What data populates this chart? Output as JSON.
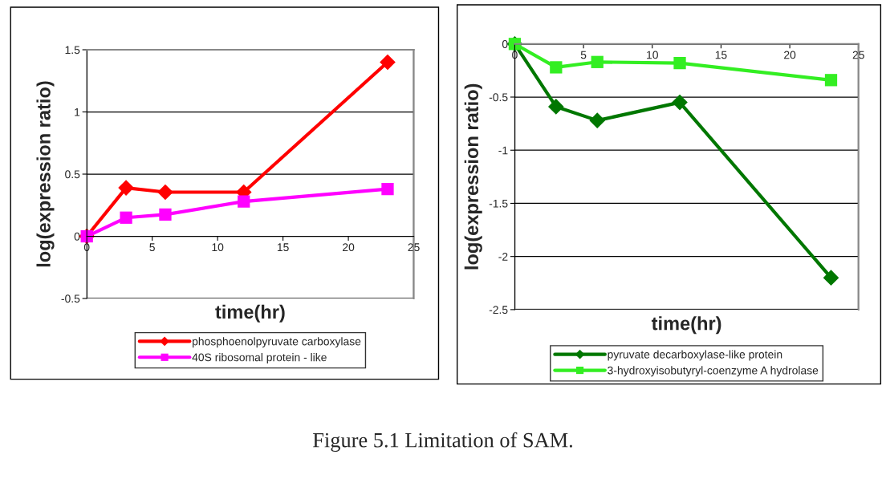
{
  "chart_data": [
    {
      "type": "line",
      "xlabel": "time(hr)",
      "ylabel": "log(expression ratio)",
      "x": [
        0,
        3,
        6,
        12,
        23
      ],
      "xlim": [
        0,
        25
      ],
      "xticks": [
        0,
        5,
        10,
        15,
        20,
        25
      ],
      "ylim": [
        -0.5,
        1.5
      ],
      "yticks": [
        -0.5,
        0,
        0.5,
        1,
        1.5
      ],
      "grid": "y",
      "legend": "bottom",
      "series": [
        {
          "name": "phosphoenolpyruvate carboxylase",
          "color": "#ff0000",
          "marker": "diamond",
          "values": [
            0,
            0.39,
            0.355,
            0.355,
            1.4
          ]
        },
        {
          "name": "40S ribosomal protein - like",
          "color": "#ff00ff",
          "marker": "square",
          "values": [
            0,
            0.15,
            0.175,
            0.28,
            0.38
          ]
        }
      ],
      "annotations": [
        "Figure 5.1 Limitation of SAM."
      ]
    },
    {
      "type": "line",
      "xlabel": "time(hr)",
      "ylabel": "log(expression ratio)",
      "x": [
        0,
        3,
        6,
        12,
        23
      ],
      "xlim": [
        0,
        25
      ],
      "xticks": [
        0,
        5,
        10,
        15,
        20,
        25
      ],
      "ylim": [
        -2.5,
        0
      ],
      "yticks": [
        -2.5,
        -2,
        -1.5,
        -1,
        -0.5,
        0
      ],
      "grid": "y",
      "legend": "bottom",
      "series": [
        {
          "name": "pyruvate decarboxylase-like protein",
          "color": "#007700",
          "marker": "diamond",
          "values": [
            0,
            -0.59,
            -0.72,
            -0.55,
            -2.2
          ]
        },
        {
          "name": "3-hydroxyisobutyryl-coenzyme A hydrolase",
          "color": "#33ee22",
          "marker": "square",
          "values": [
            0,
            -0.22,
            -0.17,
            -0.18,
            -0.34
          ]
        }
      ]
    }
  ]
}
